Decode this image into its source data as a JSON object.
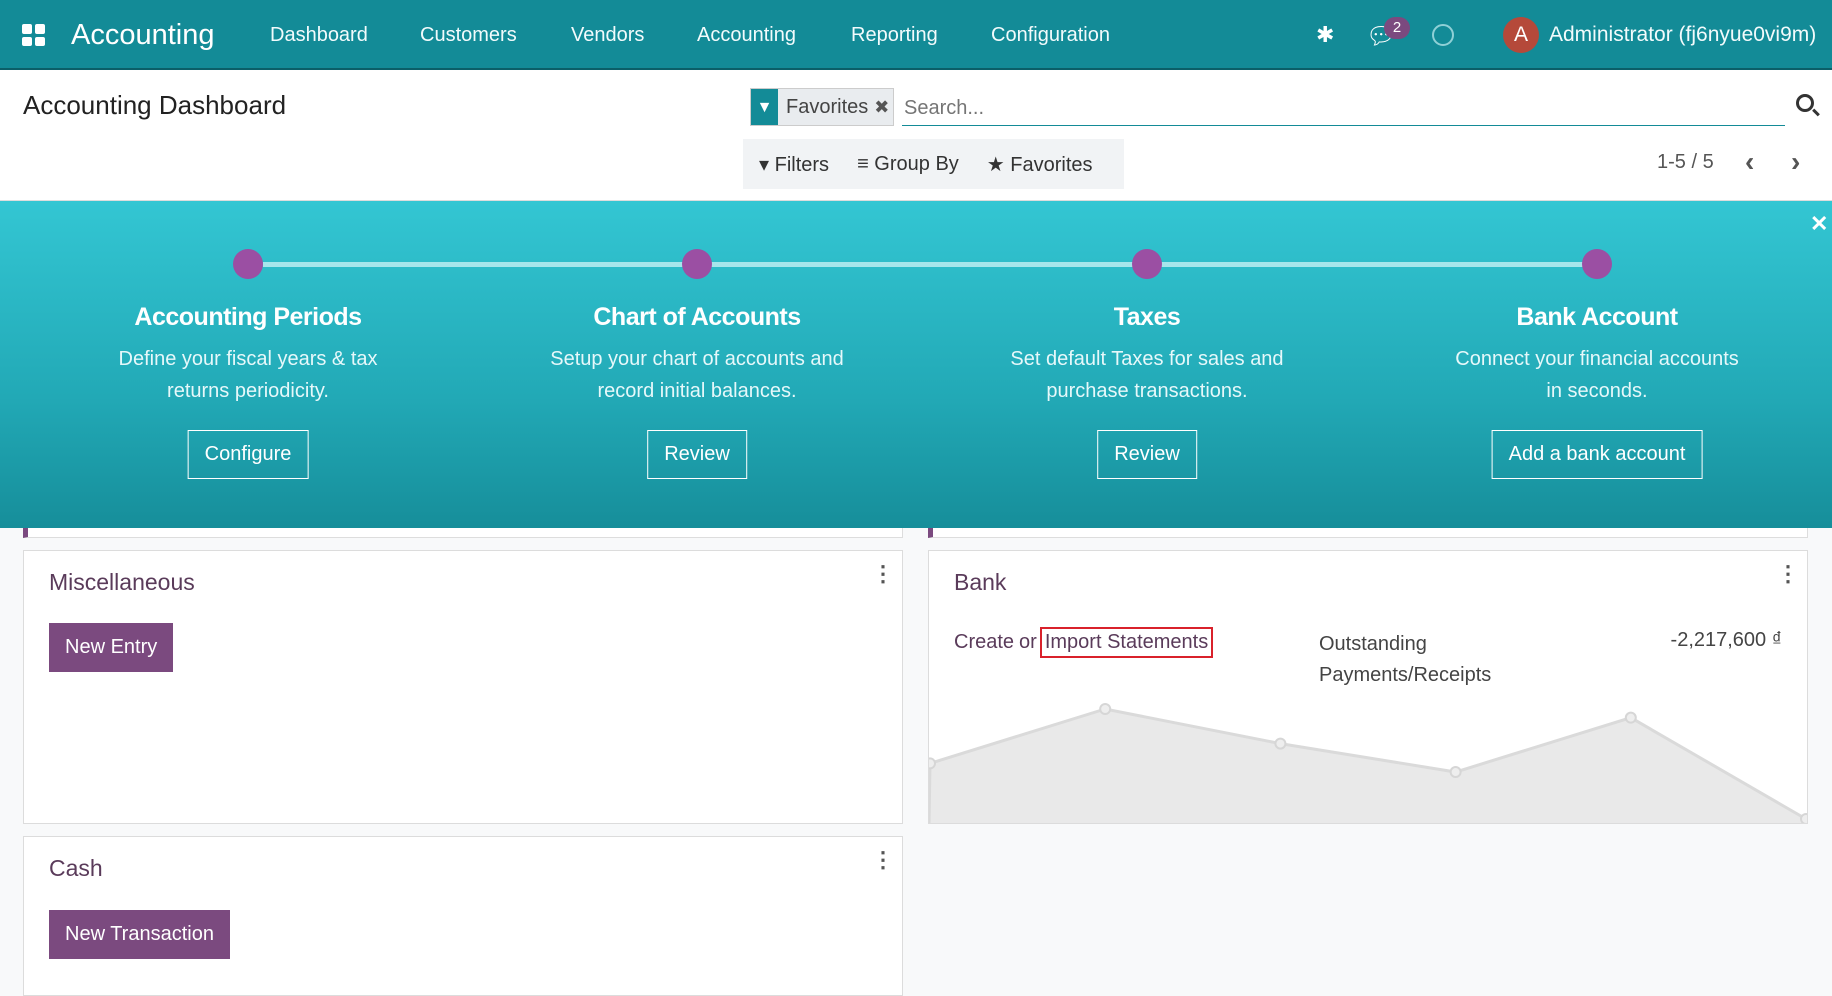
{
  "navbar": {
    "app_name": "Accounting",
    "menus": [
      "Dashboard",
      "Customers",
      "Vendors",
      "Accounting",
      "Reporting",
      "Configuration"
    ],
    "message_count": "2",
    "avatar_letter": "A",
    "user": "Administrator (fj6nyue0vi9m)",
    "color": "#138b97"
  },
  "control_panel": {
    "title": "Accounting Dashboard",
    "facet": "Favorites",
    "search_placeholder": "Search...",
    "filters": "Filters",
    "group_by": "Group By",
    "favorites": "Favorites",
    "pager": "1-5 / 5"
  },
  "banner": {
    "steps": [
      {
        "title": "Accounting Periods",
        "desc1": "Define your fiscal years & tax",
        "desc2": "returns periodicity.",
        "button": "Configure"
      },
      {
        "title": "Chart of Accounts",
        "desc1": "Setup your chart of accounts and",
        "desc2": "record initial balances.",
        "button": "Review"
      },
      {
        "title": "Taxes",
        "desc1": "Set default Taxes for sales and",
        "desc2": "purchase transactions.",
        "button": "Review"
      },
      {
        "title": "Bank Account",
        "desc1": "Connect your financial accounts",
        "desc2": "in seconds.",
        "button": "Add a bank account"
      }
    ]
  },
  "cards": {
    "misc": {
      "title": "Miscellaneous",
      "button": "New Entry"
    },
    "bank": {
      "title": "Bank",
      "create": "Create",
      "or": "or",
      "import": "Import Statements",
      "outstanding1": "Outstanding",
      "outstanding2": "Payments/Receipts",
      "amount": "-2,217,600 ₫"
    },
    "cash": {
      "title": "Cash",
      "button": "New Transaction"
    }
  },
  "chart_data": {
    "type": "area",
    "values": [
      45,
      89,
      61,
      38,
      82,
      0
    ],
    "grid": false,
    "color": "#e9e9e9"
  }
}
